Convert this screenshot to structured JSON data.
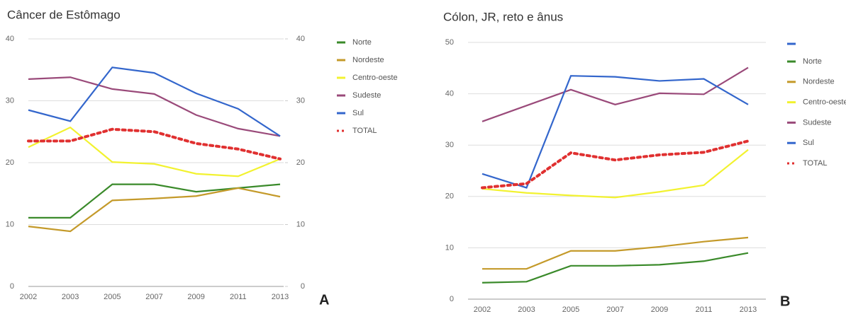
{
  "chart_data": [
    {
      "type": "line",
      "title": "Câncer de Estômago",
      "panel_label": "A",
      "categories": [
        "2002",
        "2003",
        "2005",
        "2007",
        "2009",
        "2011",
        "2013"
      ],
      "ylim": [
        0,
        40
      ],
      "yticks": [
        0,
        10,
        20,
        30,
        40
      ],
      "y2lim": [
        0,
        40
      ],
      "y2ticks": [
        0,
        10,
        20,
        30,
        40
      ],
      "grid": true,
      "series": [
        {
          "name": "Norte",
          "color": "#3a8a2a",
          "style": "solid",
          "values": [
            11.1,
            11.1,
            16.5,
            16.5,
            15.3,
            15.9,
            16.5
          ]
        },
        {
          "name": "Nordeste",
          "color": "#c49a2a",
          "style": "solid",
          "values": [
            9.7,
            8.9,
            13.9,
            14.2,
            14.6,
            15.9,
            14.5
          ]
        },
        {
          "name": "Centro-oeste",
          "color": "#f2f230",
          "style": "solid",
          "values": [
            22.5,
            25.7,
            20.1,
            19.8,
            18.2,
            17.8,
            20.6
          ]
        },
        {
          "name": "Sudeste",
          "color": "#9a4a7a",
          "style": "solid",
          "values": [
            33.5,
            33.8,
            31.9,
            31.1,
            27.7,
            25.5,
            24.3
          ]
        },
        {
          "name": "Sul",
          "color": "#3366cc",
          "style": "solid",
          "values": [
            28.5,
            26.7,
            35.4,
            34.5,
            31.2,
            28.7,
            24.3
          ]
        },
        {
          "name": "TOTAL",
          "color": "#e03030",
          "style": "dotted",
          "values": [
            23.5,
            23.5,
            25.4,
            25.0,
            23.1,
            22.2,
            20.6
          ]
        }
      ]
    },
    {
      "type": "line",
      "title": "Cólon, JR, reto e ânus",
      "panel_label": "B",
      "categories": [
        "2002",
        "2003",
        "2005",
        "2007",
        "2009",
        "2011",
        "2013"
      ],
      "ylim": [
        0,
        50
      ],
      "yticks": [
        0,
        10,
        20,
        30,
        40,
        50
      ],
      "grid": true,
      "series": [
        {
          "name": "Norte",
          "color": "#3a8a2a",
          "style": "solid",
          "values": [
            3.2,
            3.4,
            6.5,
            6.5,
            6.7,
            7.4,
            9.0
          ]
        },
        {
          "name": "Nordeste",
          "color": "#c49a2a",
          "style": "solid",
          "values": [
            5.9,
            5.9,
            9.4,
            9.4,
            10.2,
            11.2,
            12.0
          ]
        },
        {
          "name": "Centro-oeste",
          "color": "#f2f230",
          "style": "solid",
          "values": [
            21.5,
            20.7,
            20.2,
            19.8,
            20.9,
            22.2,
            29.1
          ]
        },
        {
          "name": "Sudeste",
          "color": "#9a4a7a",
          "style": "solid",
          "values": [
            34.6,
            37.7,
            40.8,
            37.9,
            40.1,
            39.9,
            45.1
          ]
        },
        {
          "name": "Sul",
          "color": "#3366cc",
          "style": "solid",
          "values": [
            24.4,
            21.7,
            43.5,
            43.3,
            42.5,
            42.9,
            37.9
          ]
        },
        {
          "name": "TOTAL",
          "color": "#e03030",
          "style": "dotted",
          "values": [
            21.7,
            22.5,
            28.5,
            27.1,
            28.1,
            28.6,
            30.8
          ]
        }
      ]
    }
  ]
}
